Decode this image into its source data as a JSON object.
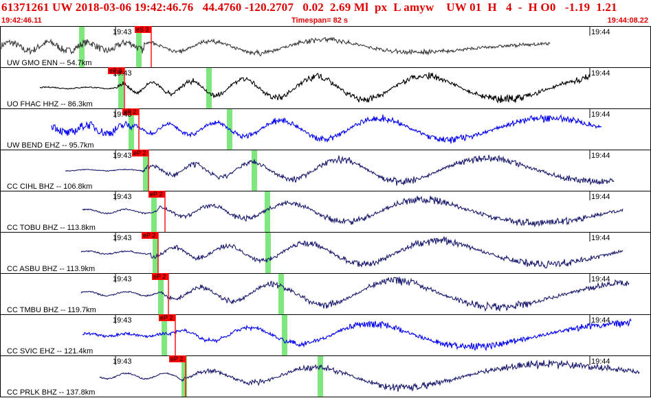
{
  "header": {
    "title": "61371261 UW 2018-03-06 19:42:46.76   44.4760 -120.2707   0.02  2.69 Ml  px  L amyw    UW 01  H   4  -  H O0   -1.19  1.21",
    "start_time": "19:42:46.11",
    "timespan": "Timespan=  82 s",
    "end_time": "19:44:08.22"
  },
  "colors": {
    "black": "#000000",
    "navy": "#1a1a6e",
    "blue": "#0000ee",
    "grey": "#3a3a3a",
    "pick": "#ff0000",
    "marker": "#7ee87e"
  },
  "traces": [
    {
      "label": "UW GMO ENN -- 54.7km",
      "t1": "19:43",
      "t2": "19:44",
      "pick": "eS 3",
      "color": "grey"
    },
    {
      "label": "UO FHAC HHZ -- 86.3km",
      "t1": "19:43",
      "t2": "19:44",
      "pick": "eP 3",
      "color": "black"
    },
    {
      "label": "UW BEND EHZ -- 95.7km",
      "t1": "19:43",
      "t2": "19:44",
      "pick": "eP 2",
      "color": "blue"
    },
    {
      "label": "CC CIHL BHZ -- 106.8km",
      "t1": "19:43",
      "t2": "19:44",
      "pick": "eP 2",
      "color": "navy"
    },
    {
      "label": "CC TOBU BHZ -- 113.8km",
      "t1": "19:43",
      "t2": "19:44",
      "pick": "eP 2",
      "color": "navy"
    },
    {
      "label": "CC ASBU BHZ -- 113.9km",
      "t1": "19:43",
      "t2": "19:44",
      "pick": "eP 2",
      "color": "navy"
    },
    {
      "label": "CC TMBU BHZ -- 119.7km",
      "t1": "19:43",
      "t2": "19:44",
      "pick": "eP 2",
      "color": "navy"
    },
    {
      "label": "CC SVIC EHZ -- 121.4km",
      "t1": "19:43",
      "t2": "19:44",
      "pick": "eP 2",
      "color": "blue"
    },
    {
      "label": "CC PRLK BHZ -- 137.8km",
      "t1": "19:43",
      "t2": "19:44",
      "pick": "eP 2",
      "color": "navy"
    }
  ]
}
